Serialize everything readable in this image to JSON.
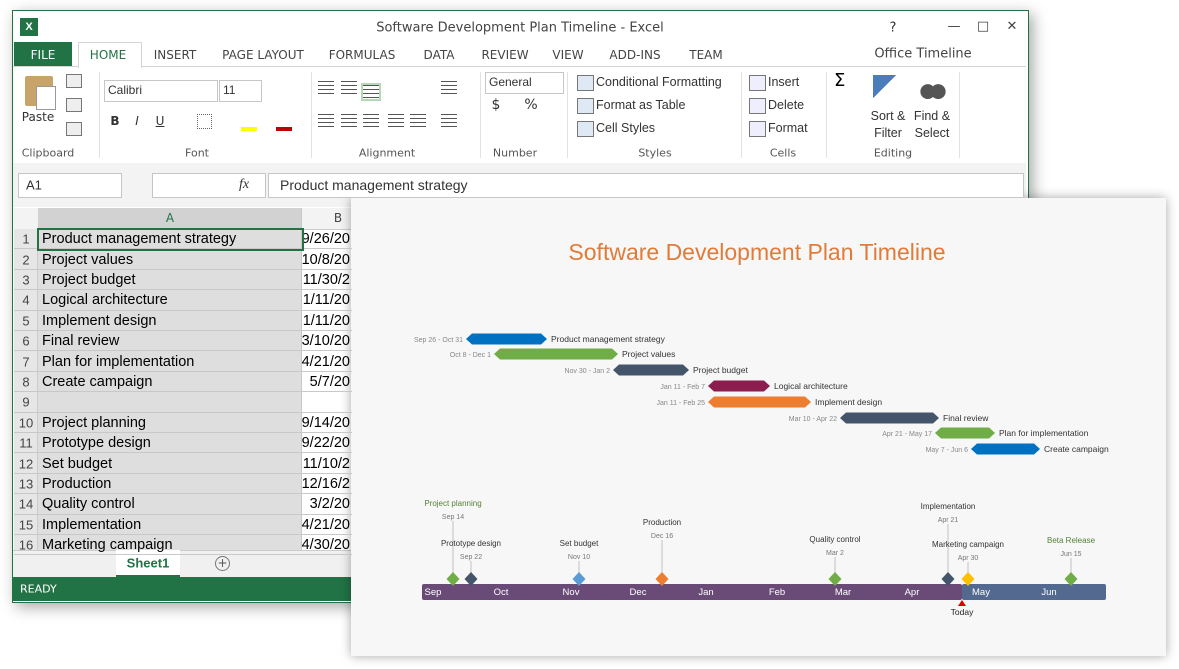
{
  "window": {
    "title": "Software Development Plan Timeline - Excel",
    "help": "?"
  },
  "ribbon": {
    "tabs": [
      "FILE",
      "HOME",
      "INSERT",
      "PAGE LAYOUT",
      "FORMULAS",
      "DATA",
      "REVIEW",
      "VIEW",
      "ADD-INS",
      "TEAM"
    ],
    "account": "Office Timeline",
    "clipboard": {
      "paste": "Paste",
      "group": "Clipboard"
    },
    "font": {
      "name": "Calibri",
      "size": "11",
      "bold": "B",
      "italic": "I",
      "underline": "U",
      "group": "Font"
    },
    "alignment": {
      "group": "Alignment"
    },
    "number": {
      "format": "General",
      "currency": "$",
      "percent": "%",
      "group": "Number"
    },
    "styles": {
      "items": [
        "Conditional Formatting",
        "Format as Table",
        "Cell Styles"
      ],
      "group": "Styles"
    },
    "cells": {
      "items": [
        "Insert",
        "Delete",
        "Format"
      ],
      "group": "Cells"
    },
    "editing": {
      "sort": [
        "Sort &",
        "Filter"
      ],
      "find": [
        "Find &",
        "Select"
      ],
      "group": "Editing"
    }
  },
  "formula_bar": {
    "name_box": "A1",
    "fx": "fx",
    "content": "Product management strategy"
  },
  "sheet": {
    "columns": [
      "A",
      "B"
    ],
    "rows": [
      {
        "n": "1",
        "a": "Product management strategy",
        "b": "9/26/20"
      },
      {
        "n": "2",
        "a": "Project values",
        "b": "10/8/20"
      },
      {
        "n": "3",
        "a": "Project budget",
        "b": "11/30/2"
      },
      {
        "n": "4",
        "a": "Logical architecture",
        "b": "1/11/20"
      },
      {
        "n": "5",
        "a": "Implement design",
        "b": "1/11/20"
      },
      {
        "n": "6",
        "a": "Final review",
        "b": "3/10/20"
      },
      {
        "n": "7",
        "a": "Plan for implementation",
        "b": "4/21/20"
      },
      {
        "n": "8",
        "a": "Create campaign",
        "b": "5/7/20"
      },
      {
        "n": "9"
      },
      {
        "n": "10",
        "a": "Project planning",
        "b": "9/14/20"
      },
      {
        "n": "11",
        "a": "Prototype design",
        "b": "9/22/20"
      },
      {
        "n": "12",
        "a": "Set budget",
        "b": "11/10/2"
      },
      {
        "n": "13",
        "a": "Production",
        "b": "12/16/2"
      },
      {
        "n": "14",
        "a": "Quality control",
        "b": "3/2/20"
      },
      {
        "n": "15",
        "a": "Implementation",
        "b": "4/21/20"
      },
      {
        "n": "16",
        "a": "Marketing campaign",
        "b": "4/30/20"
      }
    ],
    "tab": "Sheet1"
  },
  "status": "READY",
  "timeline": {
    "title": "Software Development Plan Timeline",
    "tasks": [
      {
        "name": "Product management strategy",
        "dates": "Sep 26 - Oct 31",
        "color": "#0070c0"
      },
      {
        "name": "Project values",
        "dates": "Oct 8 - Dec 1",
        "color": "#70ad47"
      },
      {
        "name": "Project budget",
        "dates": "Nov 30 - Jan 2",
        "color": "#44546a"
      },
      {
        "name": "Logical architecture",
        "dates": "Jan 11 - Feb 7",
        "color": "#8b1d4f"
      },
      {
        "name": "Implement design",
        "dates": "Jan 11 - Feb 25",
        "color": "#ed7d31"
      },
      {
        "name": "Final review",
        "dates": "Mar 10 - Apr 22",
        "color": "#44546a"
      },
      {
        "name": "Plan for implementation",
        "dates": "Apr 21 - May 17",
        "color": "#70ad47"
      },
      {
        "name": "Create campaign",
        "dates": "May 7 - Jun 6",
        "color": "#0070c0"
      }
    ],
    "milestones": [
      {
        "name": "Project planning",
        "date": "Sep 14",
        "color": "#70ad47"
      },
      {
        "name": "Prototype design",
        "date": "Sep 22",
        "color": "#44546a"
      },
      {
        "name": "Set budget",
        "date": "Nov 10",
        "color": "#5b9bd5"
      },
      {
        "name": "Production",
        "date": "Dec 16",
        "color": "#ed7d31"
      },
      {
        "name": "Quality control",
        "date": "Mar 2",
        "color": "#70ad47"
      },
      {
        "name": "Implementation",
        "date": "Apr 21",
        "color": "#44546a"
      },
      {
        "name": "Marketing campaign",
        "date": "Apr 30",
        "color": "#ffc000"
      },
      {
        "name": "Beta Release",
        "date": "Jun 15",
        "color": "#70ad47"
      }
    ],
    "months": [
      "Sep",
      "Oct",
      "Nov",
      "Dec",
      "Jan",
      "Feb",
      "Mar",
      "Apr",
      "May",
      "Jun"
    ],
    "today": "Today"
  }
}
